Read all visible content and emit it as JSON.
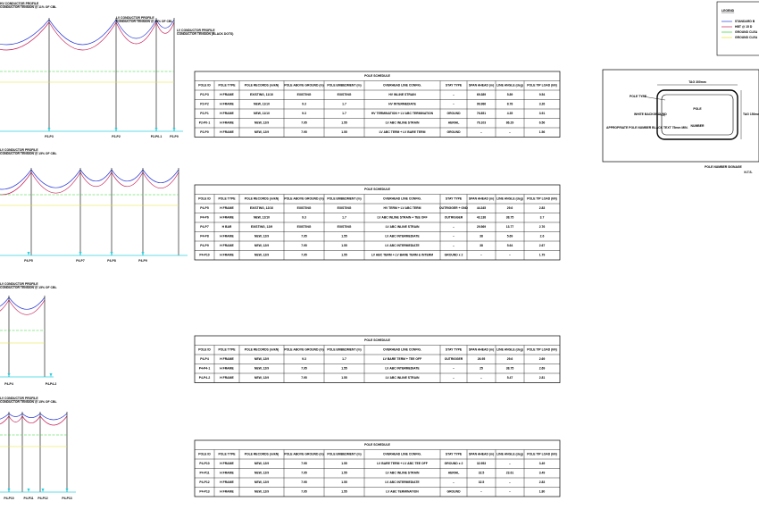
{
  "columns": [
    "POLE ID",
    "POLE TYPE",
    "POLE RECORDS (m/kN)",
    "POLE ABOVE GROUND (m)",
    "POLE EMBEDMENT (m)",
    "OVERHEAD LINE CONFIG.",
    "STAY TYPE",
    "SPAN AHEAD (m)",
    "LINE ANGLE (deg)",
    "POLE TIP LOAD (kN)"
  ],
  "tables": [
    {
      "title": "POLE SCHEDULE",
      "rows": [
        [
          "P2-P3",
          "H FRAME",
          "EXISTING, 11/10",
          "EXISTING",
          "EXISTING",
          "HV INLINE STRAIN",
          "–",
          "69.389",
          "5.89",
          "9.54"
        ],
        [
          "P2-P2",
          "H FRAME",
          "NEW, 11/10",
          "9.3",
          "1.7",
          "HV INTERMEDIATE",
          "–",
          "96.986",
          "8.78",
          "3.26"
        ],
        [
          "P2-P1",
          "H FRAME",
          "NEW, 11/10",
          "9.3",
          "1.7",
          "HV TERMINATION + LV ABC TERMINATION",
          "GROUND",
          "76.851",
          "4.35",
          "3.91"
        ],
        [
          "P2-P0-1",
          "H FRAME",
          "NEW, 12/9",
          "7.95",
          "1.55",
          "LV ABC INLINE STRAIN",
          "AERIAL",
          "76.103",
          "86.29",
          "6.56"
        ],
        [
          "P2-P0",
          "H FRAME",
          "NEW, 12/9",
          "7.95",
          "1.55",
          "LV ABC TERM + LV BARE TERM",
          "GROUND",
          "–",
          "–",
          "1.56"
        ]
      ]
    },
    {
      "title": "POLE SCHEDULE",
      "rows": [
        [
          "P4-P5",
          "H FRAME",
          "EXISTING, 12/10",
          "EXISTING",
          "EXISTING",
          "HV TERM + LV ABC TERM",
          "OUTRIGGER + GND",
          "44.345",
          "29.6",
          "2.83"
        ],
        [
          "P4-P6",
          "H FRAME",
          "NEW, 12/10",
          "9.3",
          "1.7",
          "LV ABC INLINE STRAIN + TEE OFF",
          "OUTRIGGER",
          "43.138",
          "38.75",
          "3.7"
        ],
        [
          "P4-P7",
          "H BAR",
          "EXISTING, 12/9",
          "EXISTING",
          "EXISTING",
          "LV ABC INLINE STRAIN",
          "–",
          "29.569",
          "13.77",
          "2.76"
        ],
        [
          "P4-P8",
          "H FRAME",
          "NEW, 12/9",
          "7.95",
          "1.55",
          "LV ABC INTERMEDIATE",
          "–",
          "38",
          "5.69",
          "2.6"
        ],
        [
          "P4-P9",
          "H FRAME",
          "NEW, 12/9",
          "7.95",
          "1.55",
          "LV ABC INTERMEDIATE",
          "–",
          "38",
          "5.64",
          "2.67"
        ],
        [
          "P4-P10",
          "H FRAME",
          "NEW, 12/9",
          "7.95",
          "1.55",
          "LV ABC TERM + LV BARE TERM & INTERM",
          "GROUND x 2",
          "–",
          "–",
          "1.79"
        ]
      ]
    },
    {
      "title": "POLE SCHEDULE",
      "rows": [
        [
          "P4-P4",
          "H FRAME",
          "NEW, 12/9",
          "9.3",
          "1.7",
          "LV BARE TERM + TEE OFF",
          "OUTRIGGER",
          "26.95",
          "29.6",
          "2.69"
        ],
        [
          "P4-P4-1",
          "H FRAME",
          "NEW, 12/9",
          "7.95",
          "1.55",
          "LV ABC INTERMEDIATE",
          "–",
          "25",
          "38.75",
          "2.69"
        ],
        [
          "P4-P4-2",
          "H FRAME",
          "NEW, 12/9",
          "7.95",
          "1.55",
          "LV ABC INLINE STRAIN",
          "–",
          "–",
          "5.47",
          "2.81"
        ]
      ]
    },
    {
      "title": "POLE SCHEDULE",
      "rows": [
        [
          "P4-P10",
          "H FRAME",
          "NEW, 12/9",
          "7.95",
          "1.55",
          "LV BARE TERM + LV ABC TEE OFF",
          "GROUND x 2",
          "32.953",
          "–",
          "3.49"
        ],
        [
          "P4-P11",
          "H FRAME",
          "NEW, 12/9",
          "7.95",
          "1.55",
          "LV ABC INLINE STRAIN",
          "AERIAL",
          "32.5",
          "23.61",
          "3.49"
        ],
        [
          "P4-P12",
          "H FRAME",
          "NEW, 12/9",
          "7.95",
          "1.55",
          "LV ABC INTERMEDIATE",
          "–",
          "32.5",
          "–",
          "2.83"
        ],
        [
          "P4-P13",
          "H FRAME",
          "NEW, 12/9",
          "7.95",
          "1.55",
          "LV ABC TERMINATION",
          "GROUND",
          "–",
          "–",
          "1.80"
        ]
      ]
    }
  ],
  "diagrams": [
    {
      "notes": [
        "HV CONDUCTOR PROFILE",
        "CONDUCTOR TENSION @ 11% OF CBL",
        "LV CONDUCTOR PROFILE",
        "CONDUCTOR TENSION @ 15% OF CBL",
        "LV CONDUCTOR PROFILE",
        "CONDUCTOR TENSION (BLACK DOTS)"
      ],
      "poles": [
        "P2-P3",
        "P2-P2",
        "P2-P0-1",
        "P2-P0"
      ]
    },
    {
      "notes": [
        "LV CONDUCTOR PROFILE",
        "CONDUCTOR TENSION @ 15% OF CBL"
      ],
      "poles": [
        "P4-P5",
        "P4-P7",
        "P4-P8",
        "P4-P9"
      ]
    },
    {
      "notes": [
        "LV CONDUCTOR PROFILE",
        "CONDUCTOR TENSION @ 15% OF CBL"
      ],
      "poles": [
        "P4-P4",
        "P4-P4-2"
      ]
    },
    {
      "notes": [
        "LV CONDUCTOR PROFILE",
        "CONDUCTOR TENSION @ 15% OF CBL"
      ],
      "poles": [
        "P4-P10",
        "P4-P11",
        "P4-P12",
        "P4-P13"
      ]
    }
  ],
  "legend": {
    "title": "LEGEND",
    "items": [
      "STANDARD B",
      "HBT @ 15 D",
      "GROUND CLEA",
      "GROUND CLEA"
    ]
  },
  "signage": {
    "line1": "POLE",
    "line2": "NUMBER",
    "pole_type": "POLE TYPE",
    "white": "WHITE BACKGROUND",
    "note": "APPROPRIATE POLE NUMBER BLACK TEXT 75mm MIN.",
    "top": "TAG 300mm",
    "side": "TAG 150mm",
    "caption": "POLE NUMBER SIGNAGE",
    "scale": "N.T.S."
  }
}
